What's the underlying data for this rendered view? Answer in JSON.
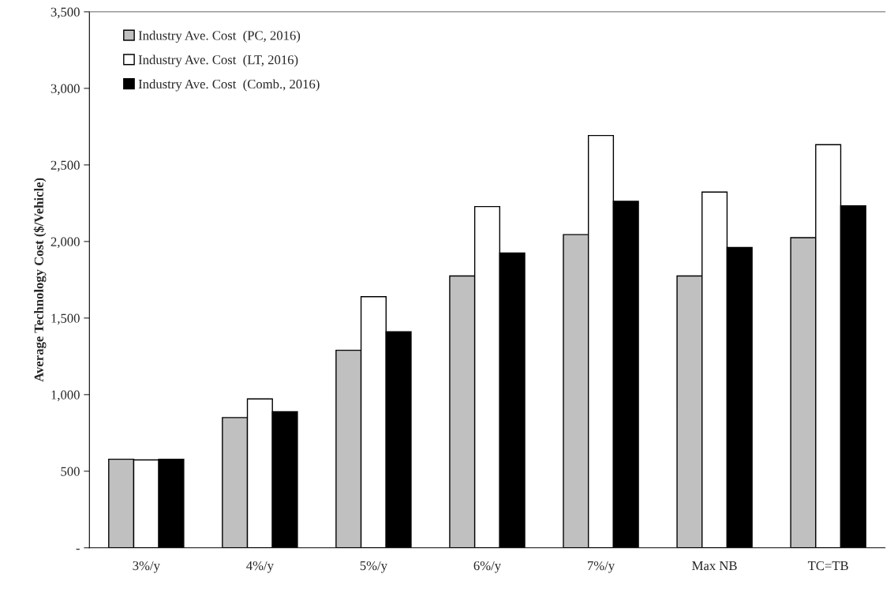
{
  "chart_data": {
    "type": "bar",
    "ylabel": "Average Technology Cost ($/Vehicle)",
    "categories": [
      "3%/y",
      "4%/y",
      "5%/y",
      "6%/y",
      "7%/y",
      "Max NB",
      "TC=TB"
    ],
    "series": [
      {
        "name": "Industry Ave. Cost  (PC, 2016)",
        "color": "#c0c0c0",
        "values": [
          578,
          850,
          1290,
          1775,
          2045,
          1775,
          2025
        ]
      },
      {
        "name": "Industry Ave. Cost  (LT, 2016)",
        "color": "#ffffff",
        "values": [
          574,
          972,
          1640,
          2228,
          2692,
          2323,
          2632
        ]
      },
      {
        "name": "Industry Ave. Cost  (Comb., 2016)",
        "color": "#000000",
        "values": [
          578,
          889,
          1410,
          1925,
          2262,
          1961,
          2233
        ]
      }
    ],
    "ylim": [
      0,
      3500
    ],
    "yticks": [
      {
        "value": 0,
        "label": "-"
      },
      {
        "value": 500,
        "label": "500"
      },
      {
        "value": 1000,
        "label": "1,000"
      },
      {
        "value": 1500,
        "label": "1,500"
      },
      {
        "value": 2000,
        "label": "2,000"
      },
      {
        "value": 2500,
        "label": "2,500"
      },
      {
        "value": 3000,
        "label": "3,000"
      },
      {
        "value": 3500,
        "label": "3,500"
      }
    ],
    "grid": false,
    "legend": "top left"
  }
}
